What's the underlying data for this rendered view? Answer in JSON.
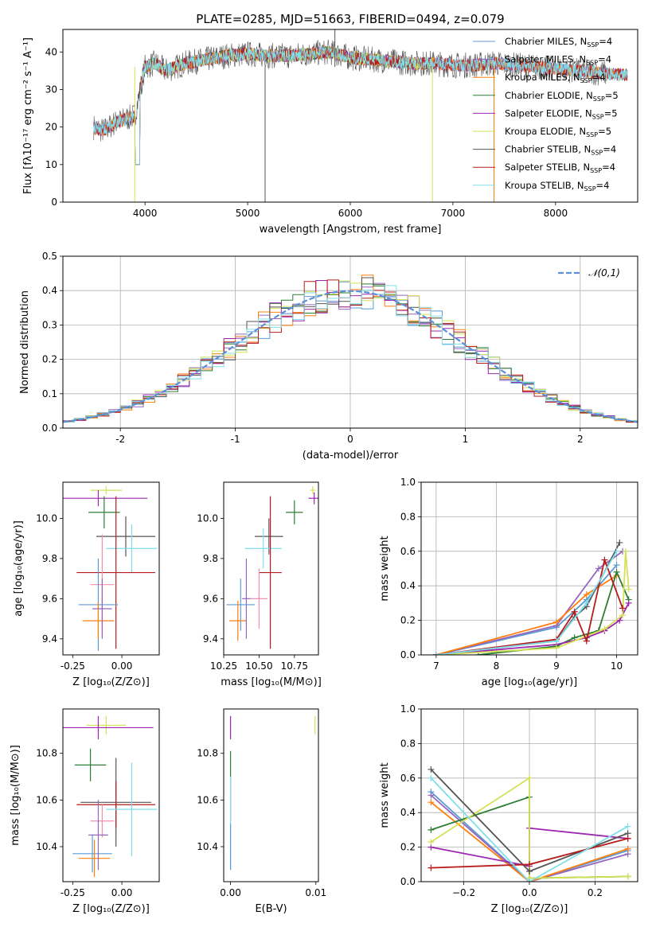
{
  "figure_title": "PLATE=0285, MJD=51663, FIBERID=0494, z=0.079",
  "colors": {
    "chabrier_miles": "#5b9bd5",
    "salpeter_miles": "#9467bd",
    "kroupa_miles": "#ff7f0e",
    "chabrier_elodie": "#2e7d32",
    "salpeter_elodie": "#9c27b0",
    "kroupa_elodie": "#d4e157",
    "chabrier_stelib": "#555555",
    "salpeter_stelib": "#b71c1c",
    "kroupa_stelib": "#80deea",
    "gaussian": "#5b8fd9",
    "pink": "#f48fb1"
  },
  "chart_data": [
    {
      "id": "spectrum",
      "type": "line",
      "xlabel": "wavelength [Angstrom, rest frame]",
      "ylabel": "Flux [fλ10⁻¹⁷ erg cm⁻² s⁻¹ A⁻¹]",
      "xlim": [
        3200,
        8800
      ],
      "ylim": [
        0,
        46
      ],
      "xticks": [
        4000,
        5000,
        6000,
        7000,
        8000
      ],
      "yticks": [
        0,
        10,
        20,
        30,
        40
      ],
      "legend": [
        "Chabrier MILES, N_SSP=4",
        "Salpeter MILES, N_SSP=4",
        "Kroupa MILES, N_SSP=4",
        "Chabrier ELODIE, N_SSP=5",
        "Salpeter ELODIE, N_SSP=5",
        "Kroupa ELODIE, N_SSP=5",
        "Chabrier STELIB, N_SSP=4",
        "Salpeter STELIB, N_SSP=4",
        "Kroupa STELIB, N_SSP=4"
      ],
      "legend_placement": "right",
      "profile_x": [
        3500,
        3600,
        3700,
        3800,
        3900,
        4000,
        4100,
        4200,
        4300,
        4400,
        4600,
        4800,
        5000,
        5200,
        5400,
        5600,
        5800,
        6000,
        6200,
        6400,
        6600,
        6800,
        7000,
        7200,
        7400,
        7800,
        8200,
        8600
      ],
      "profile_y": [
        20,
        19,
        21,
        22,
        23,
        36,
        37,
        35,
        36,
        37,
        38,
        39,
        39.5,
        39,
        39,
        39.5,
        40,
        38.5,
        38,
        37.5,
        37,
        37,
        36.5,
        36.5,
        37,
        36,
        35,
        34
      ]
    },
    {
      "id": "residuals",
      "type": "histogram",
      "xlabel": "(data-model)/error",
      "ylabel": "Normed distribution",
      "xlim": [
        -2.5,
        2.5
      ],
      "ylim": [
        0,
        0.5
      ],
      "xticks": [
        -2,
        -1,
        0,
        1,
        2
      ],
      "yticks": [
        0.0,
        0.1,
        0.2,
        0.3,
        0.4,
        0.5
      ],
      "legend": [
        "𝒩(0,1)"
      ],
      "legend_placement": "top-right",
      "grid": true
    },
    {
      "id": "age_vs_Z",
      "type": "errorbar",
      "xlabel": "Z [log₁₀(Z/Z⊙)]",
      "ylabel": "age  [log₁₀(age/yr)]",
      "xlim": [
        -0.3,
        0.19
      ],
      "ylim": [
        9.32,
        10.18
      ],
      "xticks": [
        -0.25,
        0.0
      ],
      "yticks": [
        9.4,
        9.6,
        9.8,
        10.0
      ],
      "points": [
        {
          "c": "kroupa_elodie",
          "x": -0.08,
          "xerr": 0.08,
          "y": 10.14,
          "yerr": 0.02
        },
        {
          "c": "salpeter_elodie",
          "x": -0.12,
          "xerr": 0.25,
          "y": 10.1,
          "yerr": 0.04
        },
        {
          "c": "chabrier_elodie",
          "x": -0.09,
          "xerr": 0.08,
          "y": 10.03,
          "yerr": 0.08
        },
        {
          "c": "chabrier_stelib",
          "x": 0.02,
          "xerr": 0.15,
          "y": 9.91,
          "yerr": 0.1
        },
        {
          "c": "kroupa_stelib",
          "x": 0.05,
          "xerr": 0.13,
          "y": 9.85,
          "yerr": 0.12
        },
        {
          "c": "salpeter_stelib",
          "x": -0.03,
          "xerr": 0.2,
          "y": 9.73,
          "yerr": 0.38
        },
        {
          "c": "pink",
          "x": -0.1,
          "xerr": 0.06,
          "y": 9.67,
          "yerr": 0.25
        },
        {
          "c": "chabrier_miles",
          "x": -0.12,
          "xerr": 0.1,
          "y": 9.57,
          "yerr": 0.23
        },
        {
          "c": "kroupa_miles",
          "x": -0.12,
          "xerr": 0.08,
          "y": 9.49,
          "yerr": 0.09
        },
        {
          "c": "salpeter_miles",
          "x": -0.1,
          "xerr": 0.05,
          "y": 9.55,
          "yerr": 0.15
        }
      ]
    },
    {
      "id": "age_vs_mass",
      "type": "errorbar",
      "xlabel": "mass [log₁₀(M/M⊙)]",
      "ylabel": "",
      "xlim": [
        10.25,
        10.92
      ],
      "ylim": [
        9.32,
        10.18
      ],
      "xticks": [
        10.25,
        10.5,
        10.75
      ],
      "yticks": [
        9.4,
        9.6,
        9.8,
        10.0
      ],
      "points": [
        {
          "c": "kroupa_elodie",
          "x": 10.88,
          "xerr": 0.02,
          "y": 10.14,
          "yerr": 0.02
        },
        {
          "c": "salpeter_elodie",
          "x": 10.89,
          "xerr": 0.04,
          "y": 10.1,
          "yerr": 0.03
        },
        {
          "c": "chabrier_elodie",
          "x": 10.75,
          "xerr": 0.06,
          "y": 10.03,
          "yerr": 0.06
        },
        {
          "c": "chabrier_stelib",
          "x": 10.57,
          "xerr": 0.1,
          "y": 9.91,
          "yerr": 0.09
        },
        {
          "c": "kroupa_stelib",
          "x": 10.53,
          "xerr": 0.13,
          "y": 9.85,
          "yerr": 0.1
        },
        {
          "c": "salpeter_stelib",
          "x": 10.58,
          "xerr": 0.08,
          "y": 9.73,
          "yerr": 0.38
        },
        {
          "c": "pink",
          "x": 10.5,
          "xerr": 0.06,
          "y": 9.6,
          "yerr": 0.15
        },
        {
          "c": "chabrier_miles",
          "x": 10.37,
          "xerr": 0.1,
          "y": 9.57,
          "yerr": 0.13
        },
        {
          "c": "kroupa_miles",
          "x": 10.35,
          "xerr": 0.06,
          "y": 9.49,
          "yerr": 0.1
        },
        {
          "c": "salpeter_miles",
          "x": 10.41,
          "xerr": 0.03,
          "y": 9.6,
          "yerr": 0.2
        }
      ]
    },
    {
      "id": "weight_vs_age",
      "type": "line",
      "xlabel": "age  [log₁₀(age/yr)]",
      "ylabel": "mass weight",
      "xlim": [
        6.75,
        10.35
      ],
      "ylim": [
        0,
        1.0
      ],
      "xticks": [
        7,
        8,
        9,
        10
      ],
      "yticks": [
        0.0,
        0.2,
        0.4,
        0.6,
        0.8,
        1.0
      ],
      "grid": true,
      "series": [
        {
          "c": "chabrier_miles",
          "x": [
            7.0,
            9.0,
            9.5,
            10.0
          ],
          "y": [
            0.0,
            0.16,
            0.32,
            0.52
          ]
        },
        {
          "c": "salpeter_miles",
          "x": [
            7.0,
            9.0,
            9.7,
            10.1
          ],
          "y": [
            0.0,
            0.17,
            0.5,
            0.6
          ]
        },
        {
          "c": "kroupa_miles",
          "x": [
            7.0,
            9.0,
            9.5,
            10.0
          ],
          "y": [
            0.0,
            0.19,
            0.35,
            0.46
          ]
        },
        {
          "c": "chabrier_elodie",
          "x": [
            7.7,
            9.0,
            9.3,
            9.7,
            10.0,
            10.2
          ],
          "y": [
            0.0,
            0.05,
            0.1,
            0.14,
            0.48,
            0.32
          ]
        },
        {
          "c": "salpeter_elodie",
          "x": [
            7.0,
            9.0,
            9.5,
            9.8,
            10.05,
            10.2
          ],
          "y": [
            0.0,
            0.06,
            0.1,
            0.14,
            0.2,
            0.3
          ]
        },
        {
          "c": "kroupa_elodie",
          "x": [
            7.0,
            9.0,
            9.8,
            10.1,
            10.15,
            10.2
          ],
          "y": [
            0.0,
            0.04,
            0.15,
            0.23,
            0.6,
            0.38
          ]
        },
        {
          "c": "chabrier_stelib",
          "x": [
            7.0,
            9.0,
            9.3,
            9.5,
            10.05
          ],
          "y": [
            0.0,
            0.08,
            0.22,
            0.28,
            0.65
          ]
        },
        {
          "c": "salpeter_stelib",
          "x": [
            7.0,
            9.0,
            9.3,
            9.5,
            9.8,
            10.1
          ],
          "y": [
            0.0,
            0.09,
            0.25,
            0.08,
            0.55,
            0.27
          ]
        },
        {
          "c": "kroupa_stelib",
          "x": [
            7.0,
            9.0,
            9.5,
            10.0
          ],
          "y": [
            0.0,
            0.08,
            0.3,
            0.6
          ]
        }
      ]
    },
    {
      "id": "mass_vs_Z",
      "type": "errorbar",
      "xlabel": "Z [log₁₀(Z/Z⊙)]",
      "ylabel": "mass [log₁₀(M/M⊙)]",
      "xlim": [
        -0.3,
        0.19
      ],
      "ylim": [
        10.25,
        10.99
      ],
      "xticks": [
        -0.25,
        0.0
      ],
      "yticks": [
        10.4,
        10.6,
        10.8
      ],
      "points": [
        {
          "c": "kroupa_elodie",
          "x": -0.08,
          "xerr": 0.1,
          "y": 10.92,
          "yerr": 0.04
        },
        {
          "c": "salpeter_elodie",
          "x": -0.12,
          "xerr": 0.28,
          "y": 10.91,
          "yerr": 0.05
        },
        {
          "c": "chabrier_elodie",
          "x": -0.16,
          "xerr": 0.08,
          "y": 10.75,
          "yerr": 0.07
        },
        {
          "c": "chabrier_stelib",
          "x": -0.03,
          "xerr": 0.18,
          "y": 10.59,
          "yerr": 0.19
        },
        {
          "c": "salpeter_stelib",
          "x": -0.03,
          "xerr": 0.2,
          "y": 10.58,
          "yerr": 0.1
        },
        {
          "c": "kroupa_stelib",
          "x": 0.05,
          "xerr": 0.13,
          "y": 10.56,
          "yerr": 0.2
        },
        {
          "c": "pink",
          "x": -0.1,
          "xerr": 0.06,
          "y": 10.51,
          "yerr": 0.07
        },
        {
          "c": "chabrier_miles",
          "x": -0.15,
          "xerr": 0.1,
          "y": 10.37,
          "yerr": 0.08
        },
        {
          "c": "kroupa_miles",
          "x": -0.14,
          "xerr": 0.08,
          "y": 10.35,
          "yerr": 0.08
        },
        {
          "c": "salpeter_miles",
          "x": -0.12,
          "xerr": 0.05,
          "y": 10.45,
          "yerr": 0.15
        }
      ]
    },
    {
      "id": "mass_vs_EBV",
      "type": "errorbar",
      "xlabel": "E(B-V)",
      "ylabel": "",
      "xlim": [
        -0.0008,
        0.0103
      ],
      "ylim": [
        10.25,
        10.99
      ],
      "xticks": [
        0.0,
        0.01
      ],
      "yticks": [
        10.4,
        10.6,
        10.8
      ],
      "points": [
        {
          "c": "salpeter_elodie",
          "x": 0.0,
          "xerr": 3e-05,
          "y": 10.91,
          "yerr": 0.05
        },
        {
          "c": "chabrier_elodie",
          "x": 0.0,
          "xerr": 3e-05,
          "y": 10.75,
          "yerr": 0.06
        },
        {
          "c": "salpeter_stelib",
          "x": 0.0,
          "xerr": 3e-05,
          "y": 10.6,
          "yerr": 0.09
        },
        {
          "c": "kroupa_stelib",
          "x": 0.0,
          "xerr": 3e-05,
          "y": 10.5,
          "yerr": 0.2
        },
        {
          "c": "chabrier_miles",
          "x": 0.0,
          "xerr": 3e-05,
          "y": 10.4,
          "yerr": 0.1
        },
        {
          "c": "kroupa_elodie",
          "x": 0.0099,
          "xerr": 3e-05,
          "y": 10.92,
          "yerr": 0.04
        }
      ]
    },
    {
      "id": "weight_vs_Z",
      "type": "line",
      "xlabel": "Z [log₁₀(Z/Z⊙)]",
      "ylabel": "mass weight",
      "xlim": [
        -0.33,
        0.33
      ],
      "ylim": [
        0,
        1.0
      ],
      "xticks": [
        -0.2,
        0.0,
        0.2
      ],
      "yticks": [
        0.0,
        0.2,
        0.4,
        0.6,
        0.8,
        1.0
      ],
      "grid": true,
      "series": [
        {
          "c": "chabrier_miles",
          "x": [
            -0.3,
            0.0,
            0.3
          ],
          "y": [
            0.52,
            0.0,
            0.18
          ]
        },
        {
          "c": "salpeter_miles",
          "x": [
            -0.3,
            0.0,
            0.3
          ],
          "y": [
            0.5,
            0.0,
            0.16
          ]
        },
        {
          "c": "kroupa_miles",
          "x": [
            -0.3,
            0.0,
            0.3
          ],
          "y": [
            0.46,
            0.0,
            0.19
          ]
        },
        {
          "c": "chabrier_elodie",
          "x": [
            -0.3,
            0.0,
            0.0,
            0.3
          ],
          "y": [
            0.3,
            0.49,
            0.02,
            0.03
          ]
        },
        {
          "c": "salpeter_elodie",
          "x": [
            -0.3,
            0.0,
            0.0,
            0.3
          ],
          "y": [
            0.2,
            0.09,
            0.31,
            0.25
          ]
        },
        {
          "c": "kroupa_elodie",
          "x": [
            -0.3,
            0.0,
            0.0,
            0.3
          ],
          "y": [
            0.23,
            0.6,
            0.02,
            0.03
          ]
        },
        {
          "c": "chabrier_stelib",
          "x": [
            -0.3,
            0.0,
            0.3
          ],
          "y": [
            0.65,
            0.06,
            0.28
          ]
        },
        {
          "c": "salpeter_stelib",
          "x": [
            -0.3,
            0.0,
            0.3
          ],
          "y": [
            0.08,
            0.1,
            0.25
          ]
        },
        {
          "c": "kroupa_stelib",
          "x": [
            -0.3,
            0.0,
            0.3
          ],
          "y": [
            0.6,
            0.0,
            0.32
          ]
        }
      ]
    }
  ]
}
